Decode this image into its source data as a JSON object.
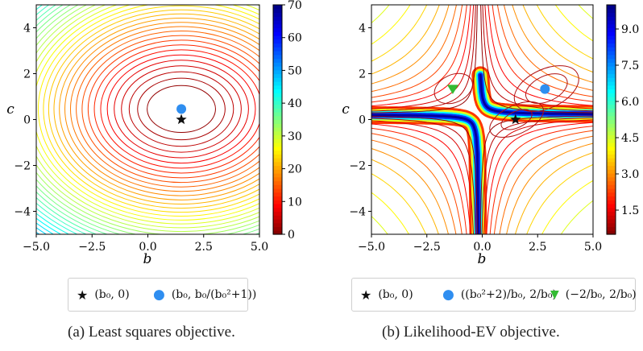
{
  "captions": {
    "a": "(a) Least squares objective.",
    "b": "(b) Likelihood-EV objective."
  },
  "chart_data": [
    {
      "type": "contour",
      "xlabel": "b",
      "ylabel": "c",
      "xlim": [
        -5.0,
        5.0
      ],
      "ylim": [
        -5.0,
        5.0
      ],
      "xticks": [
        "−5.0",
        "−2.5",
        "0.0",
        "2.5",
        "5.0"
      ],
      "yticks": [
        "−4",
        "−2",
        "0",
        "2",
        "4"
      ],
      "colorbar": {
        "colormap": "jet_r",
        "range": [
          0,
          70
        ],
        "ticks": [
          "0",
          "10",
          "20",
          "30",
          "40",
          "50",
          "60",
          "70"
        ]
      },
      "points": [
        {
          "label": "(b0, 0)",
          "x": 1.5,
          "y": 0.0,
          "marker": "star",
          "color": "#111111"
        },
        {
          "label": "(b0, b0/(b0²+1))",
          "x": 1.5,
          "y": 0.46,
          "marker": "circle",
          "color": "#2f8ef0"
        }
      ],
      "legend": {
        "placement": "below",
        "items": [
          {
            "marker": "★",
            "text": "(b₀, 0)",
            "color": "#111111"
          },
          {
            "marker": "●",
            "text": "(b₀, b₀/(b₀²+1))",
            "color": "#2f8ef0"
          }
        ]
      }
    },
    {
      "type": "contour",
      "xlabel": "b",
      "ylabel": "c",
      "xlim": [
        -5.0,
        5.0
      ],
      "ylim": [
        -5.0,
        5.0
      ],
      "xticks": [
        "−5.0",
        "−2.5",
        "0.0",
        "2.5",
        "5.0"
      ],
      "yticks": [
        "−4",
        "−2",
        "0",
        "2",
        "4"
      ],
      "colorbar": {
        "colormap": "jet_r",
        "range": [
          0.5,
          10.0
        ],
        "ticks": [
          "1.5",
          "3.0",
          "4.5",
          "6.0",
          "7.5",
          "9.0"
        ]
      },
      "points": [
        {
          "label": "(b0, 0)",
          "x": 1.5,
          "y": 0.0,
          "marker": "star",
          "color": "#111111"
        },
        {
          "label": "((b0²+2)/b0, 2/b0)",
          "x": 2.83,
          "y": 1.33,
          "marker": "circle",
          "color": "#2f8ef0"
        },
        {
          "label": "(−2/b0, 2/b0)",
          "x": -1.33,
          "y": 1.33,
          "marker": "triangle-down",
          "color": "#33bb33"
        }
      ],
      "legend": {
        "placement": "below",
        "items": [
          {
            "marker": "★",
            "text": "(b₀, 0)",
            "color": "#111111"
          },
          {
            "marker": "●",
            "text": "((b₀²+2)/b₀, 2/b₀)",
            "color": "#2f8ef0"
          },
          {
            "marker": "▼",
            "text": "(−2/b₀, 2/b₀)",
            "color": "#33bb33"
          }
        ]
      }
    }
  ]
}
